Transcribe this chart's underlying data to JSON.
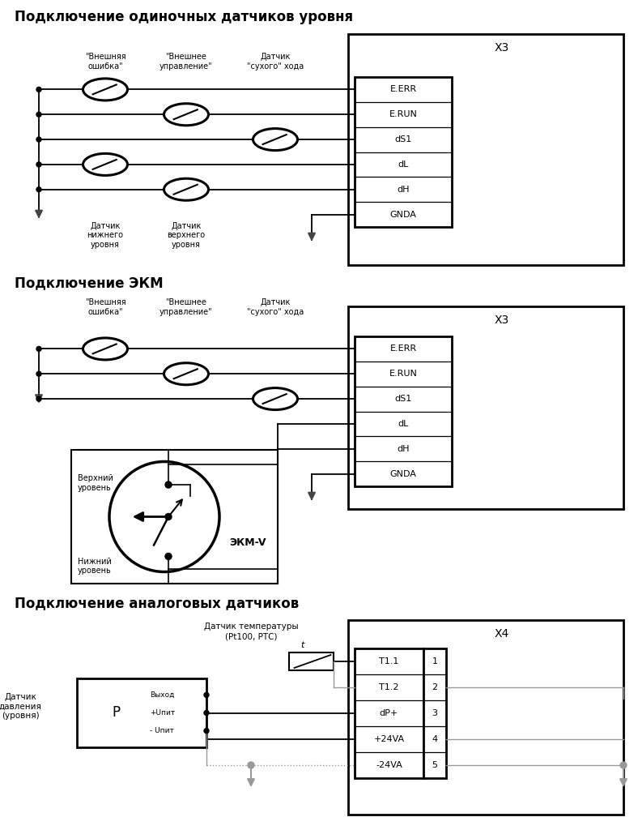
{
  "title1": "Подключение одиночных датчиков уровня",
  "title2": "Подключение ЭКМ",
  "title3": "Подключение аналоговых датчиков",
  "x3_label": "X3",
  "x4_label": "X4",
  "terminals_x3": [
    "E.ERR",
    "E.RUN",
    "dS1",
    "dL",
    "dH",
    "GNDA"
  ],
  "terminals_x4": [
    "T1.1",
    "T1.2",
    "dP+",
    "+24VA",
    "-24VA"
  ],
  "terminal_nums_x4": [
    "1",
    "2",
    "3",
    "4",
    "5"
  ],
  "label_ext_err": "\"Внешняя\nошибка\"",
  "label_ext_ctrl": "\"Внешнее\nуправление\"",
  "label_dry_run": "Датчик\n\"сухого\" хода",
  "label_low": "Датчик\nнижнего\nуровня",
  "label_high": "Датчик\nверхнего\nуровня",
  "label_upper": "Верхний\nуровень",
  "label_lower": "Нижний\nуровень",
  "label_ekm": "ЭКМ-V",
  "label_temp": "Датчик температуры\n(Pt100, РТС)",
  "label_pressure": "Датчик\nдавления\n(уровня)",
  "label_output": "Выход",
  "label_plus_pwr": "+Uпит",
  "label_minus_pwr": "- Uпит",
  "label_p": "P",
  "label_t": "t",
  "bg_color": "#ffffff",
  "line_color": "#000000",
  "gray_color": "#999999",
  "title_fontsize": 12,
  "label_fontsize": 7.5,
  "terminal_fontsize": 8
}
